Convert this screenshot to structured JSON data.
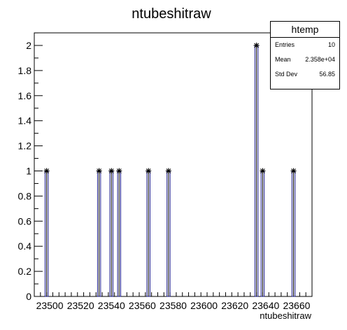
{
  "chart_data": {
    "type": "bar",
    "title": "ntubeshitraw",
    "xlabel": "ntubeshitraw",
    "ylabel": "",
    "xlim": [
      23490,
      23670
    ],
    "ylim": [
      0,
      2.1
    ],
    "x_tick_labels": [
      "23500",
      "23520",
      "23540",
      "23560",
      "23580",
      "23600",
      "23620",
      "23640",
      "23660"
    ],
    "y_tick_labels": [
      "0",
      "0.2",
      "0.4",
      "0.6",
      "0.8",
      "1",
      "1.2",
      "1.4",
      "1.6",
      "1.8",
      "2"
    ],
    "points": [
      {
        "x": 23498,
        "y": 1
      },
      {
        "x": 23532,
        "y": 1
      },
      {
        "x": 23540,
        "y": 1
      },
      {
        "x": 23545,
        "y": 1
      },
      {
        "x": 23564,
        "y": 1
      },
      {
        "x": 23577,
        "y": 1
      },
      {
        "x": 23634,
        "y": 2
      },
      {
        "x": 23638,
        "y": 1
      },
      {
        "x": 23658,
        "y": 1
      }
    ],
    "bar_color": "#1a1a8c",
    "marker": "asterisk",
    "grid": false
  },
  "stats": {
    "title": "htemp",
    "rows": [
      {
        "key": "Entries",
        "value": "10"
      },
      {
        "key": "Mean",
        "value": "2.358e+04"
      },
      {
        "key": "Std Dev",
        "value": "56.85"
      }
    ]
  }
}
